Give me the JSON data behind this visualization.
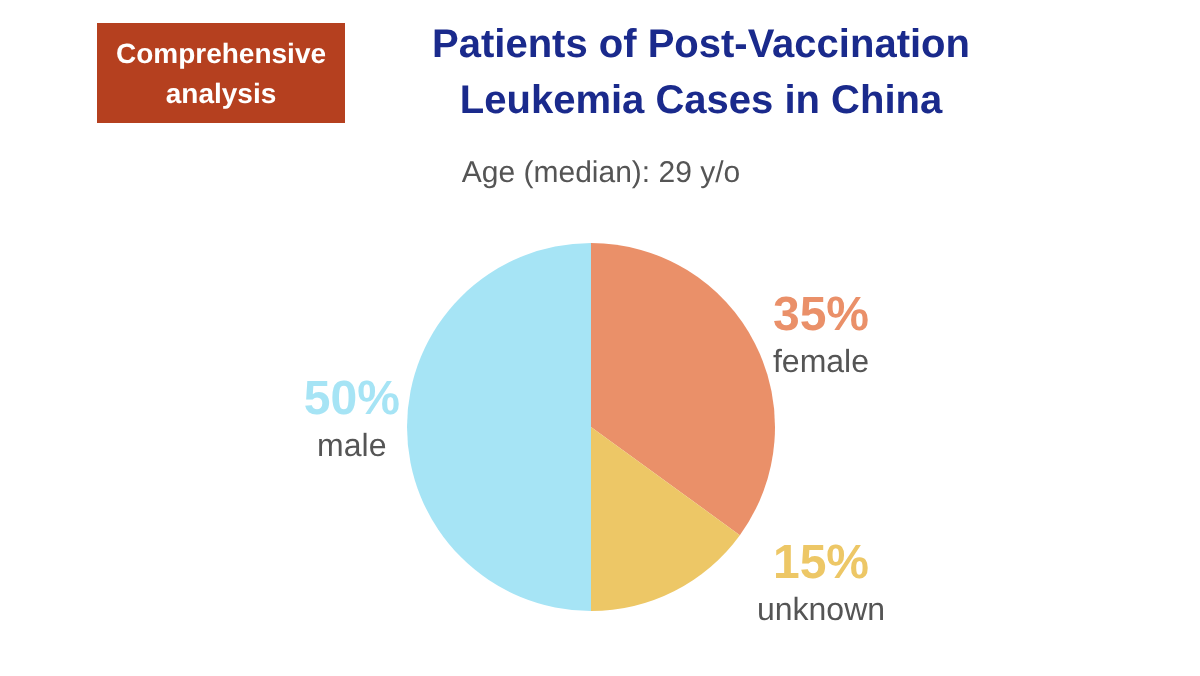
{
  "chart_data": {
    "type": "pie",
    "title": "Patients of Post-Vaccination Leukemia Cases in China",
    "subtitle": "Age (median): 29 y/o",
    "annotations": [
      "Comprehensive analysis"
    ],
    "categories": [
      "female",
      "unknown",
      "male"
    ],
    "values": [
      35,
      15,
      50
    ],
    "colors": [
      "#ea9069",
      "#edc766",
      "#a6e4f5"
    ],
    "value_labels": [
      "35%",
      "15%",
      "50%"
    ]
  }
}
